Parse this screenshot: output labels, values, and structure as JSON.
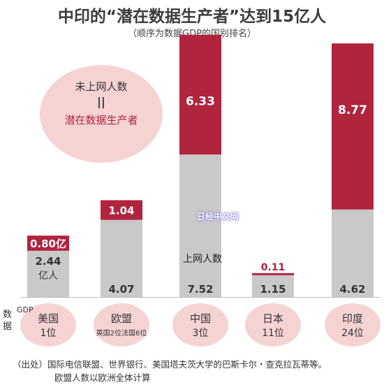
{
  "title": "中印的“潜在数据生产者”达到15亿人",
  "subtitle": "（顺序为数据GDP的国别排名）",
  "bubble": {
    "line1": "未上网人数",
    "equals": "||",
    "line2": "潜在数据生产者"
  },
  "watermark": "日经中文网",
  "online_label": "上网人数",
  "gdp_label": {
    "big": "数据",
    "small": "GDP"
  },
  "source": {
    "line1": "（出处）国际电信联盟、世界银行、美国塔夫茨大学的巴斯卡尔・查克拉瓦蒂等。",
    "line2": "欧盟人数以欧洲全体计算"
  },
  "colors": {
    "offline": "#b0243e",
    "online": "#c9c9c9",
    "circle": "#f6d3d3"
  },
  "chart_data": {
    "type": "bar",
    "stacked": true,
    "unit": "亿人",
    "ylim": [
      0,
      13.4
    ],
    "categories": [
      {
        "name": "美国",
        "rank": "1位"
      },
      {
        "name": "欧盟",
        "rank": "英国2位法国6位"
      },
      {
        "name": "中国",
        "rank": "3位"
      },
      {
        "name": "日本",
        "rank": "11位"
      },
      {
        "name": "印度",
        "rank": "24位"
      }
    ],
    "series": [
      {
        "name": "上网人数",
        "values": [
          2.44,
          4.07,
          7.52,
          1.15,
          4.62
        ],
        "labels": [
          "2.44亿人",
          "4.07",
          "7.52",
          "1.15",
          "4.62"
        ]
      },
      {
        "name": "未上网人数",
        "values": [
          0.8,
          1.04,
          6.33,
          0.11,
          8.77
        ],
        "labels": [
          "0.80亿",
          "1.04",
          "6.33",
          "0.11",
          "8.77"
        ]
      }
    ]
  }
}
